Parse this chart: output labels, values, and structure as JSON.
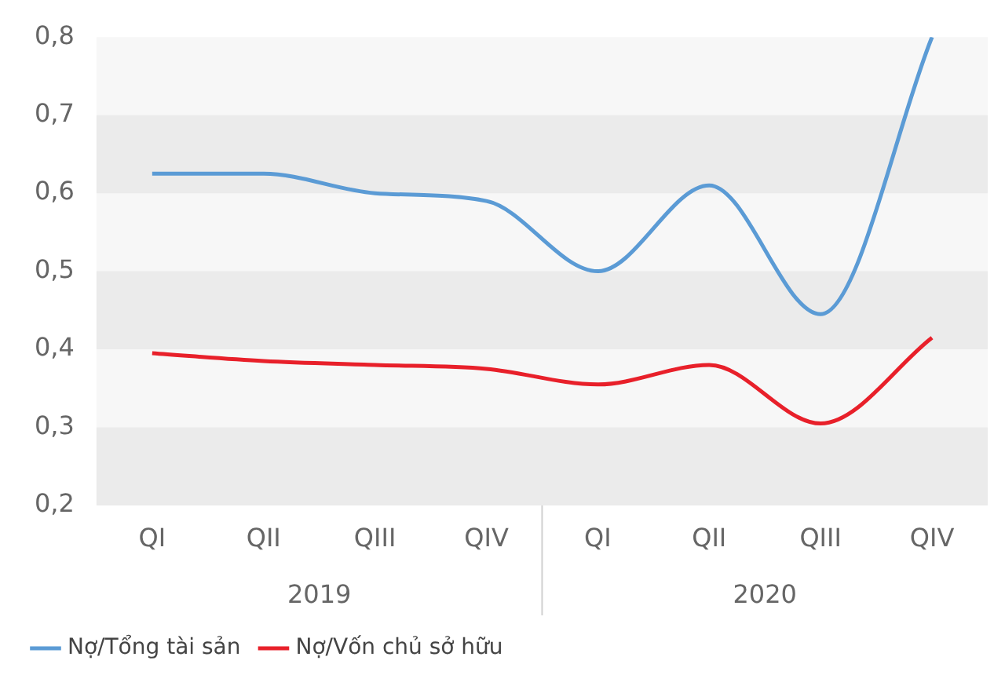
{
  "chart_data": {
    "type": "line",
    "categories": [
      "QI",
      "QII",
      "QIII",
      "QIV",
      "QI",
      "QII",
      "QIII",
      "QIV"
    ],
    "series": [
      {
        "name": "Nợ/Tổng tài sản",
        "color": "#5b9bd5",
        "values": [
          0.625,
          0.625,
          0.6,
          0.59,
          0.5,
          0.61,
          0.445,
          0.8
        ]
      },
      {
        "name": "Nợ/Vốn chủ sở hữu",
        "color": "#e8202a",
        "values": [
          0.395,
          0.385,
          0.38,
          0.375,
          0.355,
          0.38,
          0.305,
          0.415
        ]
      }
    ],
    "ylim": [
      0.2,
      0.8
    ],
    "yticks": [
      {
        "value": 0.2,
        "label": "0,2"
      },
      {
        "value": 0.3,
        "label": "0,3"
      },
      {
        "value": 0.4,
        "label": "0,4"
      },
      {
        "value": 0.5,
        "label": "0,5"
      },
      {
        "value": 0.6,
        "label": "0,6"
      },
      {
        "value": 0.7,
        "label": "0,7"
      },
      {
        "value": 0.8,
        "label": "0,8"
      }
    ],
    "bands": [
      {
        "axis": "y",
        "from": 0.6,
        "to": 0.7,
        "color": "#ebebeb"
      },
      {
        "axis": "y",
        "from": 0.4,
        "to": 0.5,
        "color": "#ebebeb"
      },
      {
        "axis": "y",
        "from": 0.2,
        "to": 0.3,
        "color": "#ebebeb"
      }
    ],
    "annotations": [
      "2019",
      "2020"
    ],
    "grid": false,
    "legend": "bottom",
    "marker": "none",
    "line_style": "solid"
  }
}
